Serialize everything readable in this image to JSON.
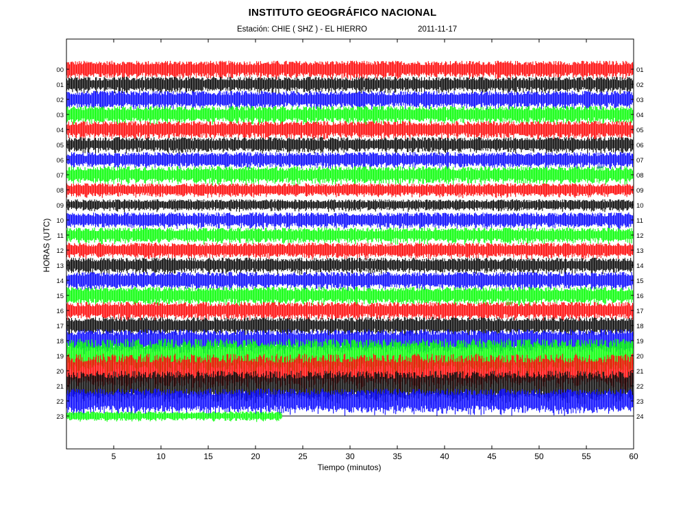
{
  "chart_data": {
    "type": "line",
    "title": "INSTITUTO GEOGRÁFICO NACIONAL",
    "station_line": "Estación:  CHIE ( SHZ ) - EL HIERRO",
    "date": "2011-11-17",
    "xlabel": "Tiempo (minutos)",
    "ylabel": "HORAS (UTC)",
    "xlim": [
      0,
      60
    ],
    "x_ticks": [
      5,
      10,
      15,
      20,
      25,
      30,
      35,
      40,
      45,
      50,
      55,
      60
    ],
    "left_hour_labels": [
      "00",
      "01",
      "02",
      "03",
      "04",
      "05",
      "06",
      "07",
      "08",
      "09",
      "10",
      "11",
      "12",
      "13",
      "14",
      "15",
      "16",
      "17",
      "18",
      "19",
      "20",
      "21",
      "22",
      "23"
    ],
    "right_hour_labels": [
      "01",
      "02",
      "03",
      "04",
      "05",
      "06",
      "07",
      "08",
      "09",
      "10",
      "11",
      "12",
      "13",
      "14",
      "15",
      "16",
      "17",
      "18",
      "19",
      "20",
      "21",
      "22",
      "23",
      "24"
    ],
    "trace_color_cycle": [
      "#ff0000",
      "#000000",
      "#0000ff",
      "#00ff00"
    ],
    "partial_trace": {
      "hour": "23",
      "end_minute": 22.8
    },
    "band_amplitude_by_hour": {
      "00": 0.9,
      "01": 0.8,
      "02": 0.9,
      "03": 0.9,
      "04": 0.9,
      "05": 0.8,
      "06": 0.8,
      "07": 0.9,
      "08": 0.7,
      "09": 0.6,
      "10": 0.8,
      "11": 0.8,
      "12": 0.8,
      "13": 0.8,
      "14": 0.9,
      "15": 0.9,
      "16": 0.9,
      "17": 0.9,
      "18": 1.2,
      "19": 1.8,
      "20": 1.8,
      "21": 1.6,
      "22": 1.3,
      "23": 0.5
    }
  }
}
